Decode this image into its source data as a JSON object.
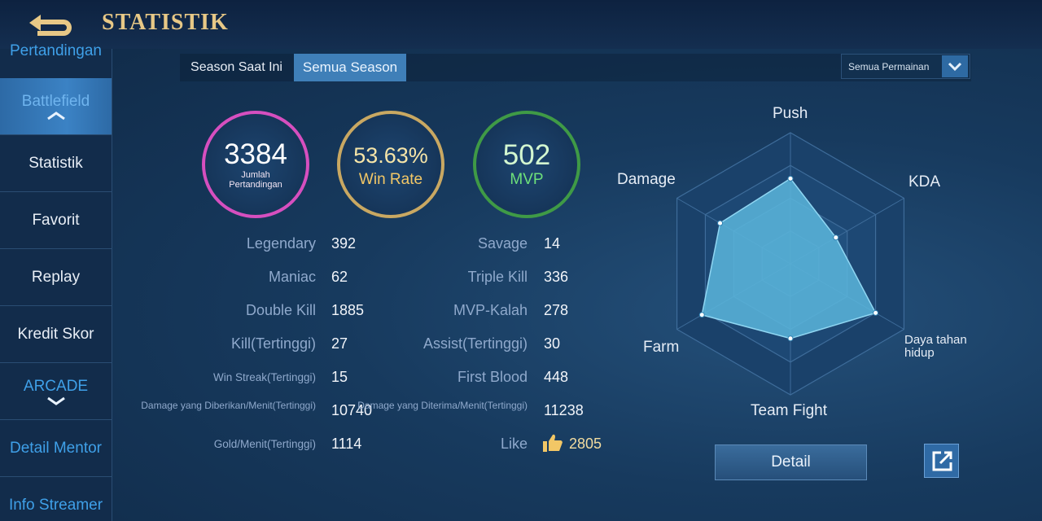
{
  "header": {
    "title": "STATISTIK"
  },
  "sidebar": {
    "items": [
      "Pertandingan",
      "Battlefield",
      "Statistik",
      "Favorit",
      "Replay",
      "Kredit Skor",
      "ARCADE",
      "Detail Mentor",
      "Info Streamer"
    ]
  },
  "tabs": [
    "Season Saat Ini",
    "Semua Season"
  ],
  "dropdown": "Semua Permainan",
  "summary": [
    {
      "value": 3384,
      "label": "Jumlah Pertandingan"
    },
    {
      "value": "53.63%",
      "label": "Win Rate"
    },
    {
      "value": 502,
      "label": "MVP"
    }
  ],
  "stats": {
    "left": [
      {
        "label": "Legendary",
        "value": 392
      },
      {
        "label": "Maniac",
        "value": 62
      },
      {
        "label": "Double Kill",
        "value": 1885
      },
      {
        "label": "Kill(Tertinggi)",
        "value": 27
      },
      {
        "label": "Win Streak(Tertinggi)",
        "value": 15
      },
      {
        "label": "Damage yang Diberikan/Menit(Tertinggi)",
        "value": 10740
      },
      {
        "label": "Gold/Menit(Tertinggi)",
        "value": 1114
      }
    ],
    "right": [
      {
        "label": "Savage",
        "value": 14
      },
      {
        "label": "Triple Kill",
        "value": 336
      },
      {
        "label": "MVP-Kalah",
        "value": 278
      },
      {
        "label": "Assist(Tertinggi)",
        "value": 30
      },
      {
        "label": "First Blood",
        "value": 448
      },
      {
        "label": "Damage yang Diterima/Menit(Tertinggi)",
        "value": 11238
      },
      {
        "label": "Like",
        "value": 2805
      }
    ]
  },
  "chart_data": {
    "type": "radar",
    "categories": [
      "Push",
      "KDA",
      "Daya tahan hidup",
      "Team Fight",
      "Farm",
      "Damage"
    ],
    "values": [
      65,
      40,
      75,
      57,
      78,
      62
    ],
    "rlim": [
      0,
      100
    ],
    "rticks": [
      25,
      50,
      75,
      100
    ],
    "color": "#5bb6dc"
  },
  "buttons": {
    "detail": "Detail"
  }
}
